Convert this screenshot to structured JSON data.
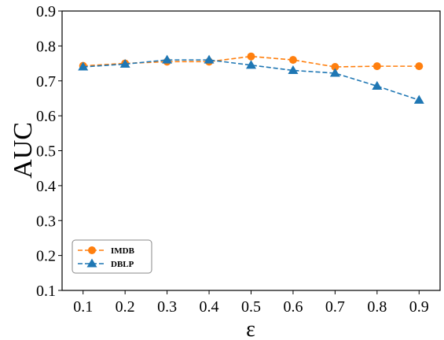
{
  "chart_data": {
    "type": "line",
    "xlabel": "ε",
    "ylabel": "AUC",
    "xlim": [
      0.05,
      0.95
    ],
    "ylim": [
      0.1,
      0.9
    ],
    "x": [
      0.1,
      0.2,
      0.3,
      0.4,
      0.5,
      0.6,
      0.7,
      0.8,
      0.9
    ],
    "xticks": [
      "0.1",
      "0.2",
      "0.3",
      "0.4",
      "0.5",
      "0.6",
      "0.7",
      "0.8",
      "0.9"
    ],
    "yticks": [
      "0.1",
      "0.2",
      "0.3",
      "0.4",
      "0.5",
      "0.6",
      "0.7",
      "0.8",
      "0.9"
    ],
    "grid": false,
    "legend": "lower-left",
    "series": [
      {
        "name": "IMDB",
        "color": "#ff7f0e",
        "marker": "circle",
        "line": "dashed",
        "values": [
          0.743,
          0.75,
          0.755,
          0.755,
          0.77,
          0.76,
          0.74,
          0.742,
          0.742
        ]
      },
      {
        "name": "DBLP",
        "color": "#1f77b4",
        "marker": "triangle",
        "line": "dashed",
        "values": [
          0.74,
          0.748,
          0.76,
          0.76,
          0.745,
          0.73,
          0.722,
          0.685,
          0.645
        ]
      }
    ]
  }
}
